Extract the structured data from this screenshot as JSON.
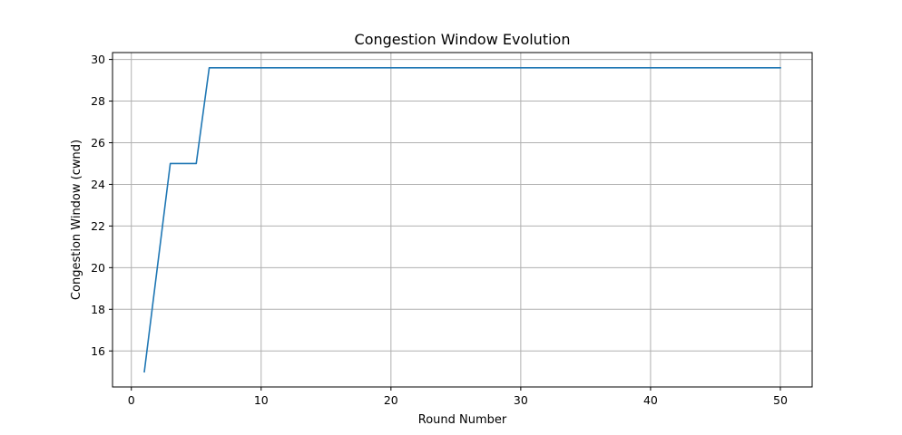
{
  "chart_data": {
    "type": "line",
    "title": "Congestion Window Evolution",
    "xlabel": "Round Number",
    "ylabel": "Congestion Window (cwnd)",
    "xlim": [
      -1.45,
      52.45
    ],
    "ylim": [
      14.27,
      30.33
    ],
    "xticks": [
      0,
      10,
      20,
      30,
      40,
      50
    ],
    "yticks": [
      16,
      18,
      20,
      22,
      24,
      26,
      28,
      30
    ],
    "grid": true,
    "legend": "none",
    "series": [
      {
        "color": "#1f77b4",
        "x": [
          1,
          2,
          3,
          4,
          5,
          6,
          7,
          8,
          9,
          10,
          11,
          12,
          13,
          14,
          15,
          16,
          17,
          18,
          19,
          20,
          21,
          22,
          23,
          24,
          25,
          26,
          27,
          28,
          29,
          30,
          31,
          32,
          33,
          34,
          35,
          36,
          37,
          38,
          39,
          40,
          41,
          42,
          43,
          44,
          45,
          46,
          47,
          48,
          49,
          50
        ],
        "y": [
          15,
          20,
          25,
          25,
          25,
          29.6,
          29.6,
          29.6,
          29.6,
          29.6,
          29.6,
          29.6,
          29.6,
          29.6,
          29.6,
          29.6,
          29.6,
          29.6,
          29.6,
          29.6,
          29.6,
          29.6,
          29.6,
          29.6,
          29.6,
          29.6,
          29.6,
          29.6,
          29.6,
          29.6,
          29.6,
          29.6,
          29.6,
          29.6,
          29.6,
          29.6,
          29.6,
          29.6,
          29.6,
          29.6,
          29.6,
          29.6,
          29.6,
          29.6,
          29.6,
          29.6,
          29.6,
          29.6,
          29.6,
          29.6
        ]
      }
    ]
  }
}
